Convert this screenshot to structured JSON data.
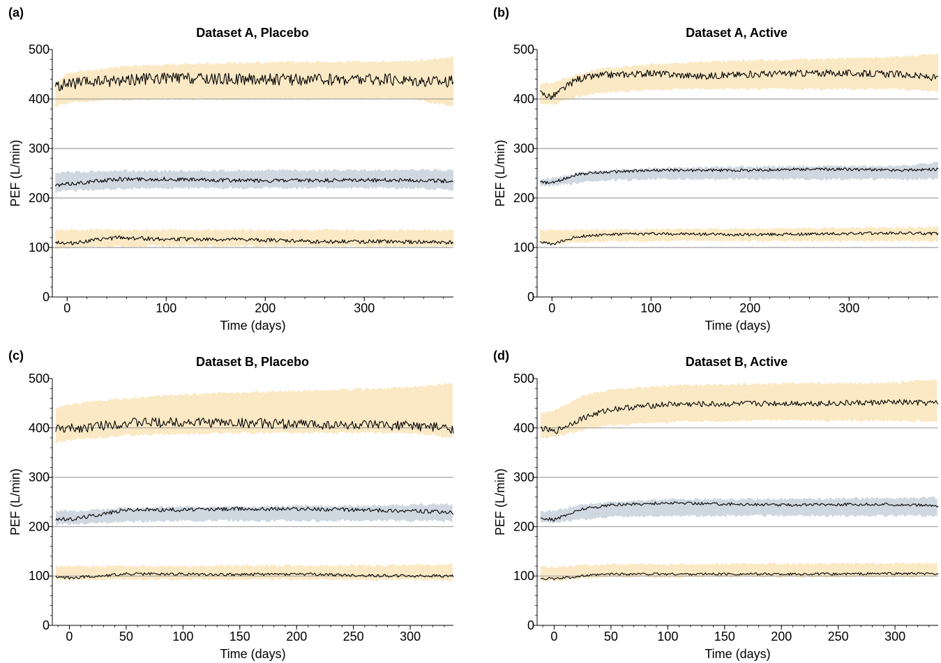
{
  "chart_data": [
    {
      "panel": "(a)",
      "type": "line",
      "title": "Dataset A, Placebo",
      "xlabel": "Time (days)",
      "ylabel": "PEF (L/min)",
      "xlim": [
        -15,
        390
      ],
      "ylim": [
        0,
        500
      ],
      "xticks": [
        0,
        100,
        200,
        300
      ],
      "yticks": [
        0,
        100,
        200,
        300,
        400,
        500
      ],
      "grid_y": [
        100,
        200,
        300,
        400
      ],
      "x_range": [
        -12,
        390
      ],
      "series": [
        {
          "band": "yellow",
          "x": [
            -12,
            0,
            50,
            100,
            150,
            200,
            250,
            300,
            350,
            390
          ],
          "lower": [
            385,
            392,
            398,
            400,
            400,
            400,
            400,
            400,
            400,
            385
          ],
          "upper": [
            430,
            452,
            465,
            470,
            472,
            474,
            475,
            475,
            477,
            485
          ],
          "median": [
            425,
            430,
            438,
            442,
            440,
            440,
            439,
            440,
            438,
            435
          ],
          "noise": 12,
          "seed": 11
        },
        {
          "band": "blue",
          "x": [
            -12,
            0,
            50,
            100,
            150,
            200,
            250,
            300,
            350,
            390
          ],
          "lower": [
            212,
            215,
            218,
            220,
            220,
            220,
            220,
            220,
            220,
            215
          ],
          "upper": [
            250,
            252,
            255,
            255,
            255,
            256,
            256,
            256,
            257,
            257
          ],
          "median": [
            225,
            228,
            238,
            238,
            236,
            235,
            235,
            236,
            236,
            234
          ],
          "noise": 4,
          "seed": 12
        },
        {
          "band": "yellow",
          "x": [
            -12,
            0,
            50,
            100,
            150,
            200,
            250,
            300,
            350,
            390
          ],
          "lower": [
            98,
            100,
            102,
            103,
            103,
            103,
            102,
            102,
            102,
            102
          ],
          "upper": [
            136,
            136,
            136,
            136,
            135,
            135,
            135,
            135,
            135,
            135
          ],
          "median": [
            112,
            108,
            120,
            117,
            116,
            115,
            112,
            112,
            111,
            110
          ],
          "noise": 4,
          "seed": 13
        }
      ]
    },
    {
      "panel": "(b)",
      "type": "line",
      "title": "Dataset A, Active",
      "xlabel": "Time (days)",
      "ylabel": "PEF (L/min)",
      "xlim": [
        -15,
        390
      ],
      "ylim": [
        0,
        500
      ],
      "xticks": [
        0,
        100,
        200,
        300
      ],
      "yticks": [
        0,
        100,
        200,
        300,
        400,
        500
      ],
      "grid_y": [
        100,
        200,
        300,
        400
      ],
      "x_range": [
        -12,
        390
      ],
      "series": [
        {
          "band": "yellow",
          "x": [
            -12,
            0,
            25,
            50,
            100,
            150,
            200,
            250,
            300,
            350,
            390
          ],
          "lower": [
            390,
            388,
            405,
            412,
            418,
            420,
            420,
            420,
            420,
            420,
            415
          ],
          "upper": [
            432,
            432,
            450,
            462,
            470,
            475,
            478,
            480,
            482,
            485,
            492
          ],
          "median": [
            412,
            404,
            440,
            448,
            452,
            446,
            450,
            452,
            452,
            450,
            442
          ],
          "noise": 7,
          "seed": 21
        },
        {
          "band": "blue",
          "x": [
            -12,
            0,
            25,
            50,
            100,
            150,
            200,
            250,
            300,
            350,
            390
          ],
          "lower": [
            226,
            225,
            230,
            235,
            238,
            238,
            238,
            238,
            238,
            238,
            238
          ],
          "upper": [
            238,
            240,
            250,
            255,
            260,
            262,
            263,
            264,
            264,
            265,
            272
          ],
          "median": [
            232,
            230,
            248,
            252,
            256,
            256,
            256,
            258,
            258,
            256,
            258
          ],
          "noise": 3,
          "seed": 22
        },
        {
          "band": "yellow",
          "x": [
            -12,
            0,
            25,
            50,
            100,
            150,
            200,
            250,
            300,
            350,
            390
          ],
          "lower": [
            108,
            106,
            110,
            112,
            113,
            113,
            113,
            113,
            113,
            113,
            112
          ],
          "upper": [
            135,
            135,
            135,
            136,
            137,
            138,
            138,
            139,
            140,
            140,
            141
          ],
          "median": [
            112,
            106,
            122,
            126,
            128,
            127,
            126,
            127,
            128,
            129,
            128
          ],
          "noise": 3,
          "seed": 23
        }
      ]
    },
    {
      "panel": "(c)",
      "type": "line",
      "title": "Dataset B, Placebo",
      "xlabel": "Time (days)",
      "ylabel": "PEF (L/min)",
      "xlim": [
        -15,
        338
      ],
      "ylim": [
        0,
        500
      ],
      "xticks": [
        0,
        50,
        100,
        150,
        200,
        250,
        300
      ],
      "yticks": [
        0,
        100,
        200,
        300,
        400,
        500
      ],
      "grid_y": [
        100,
        200,
        300,
        400
      ],
      "x_range": [
        -12,
        338
      ],
      "series": [
        {
          "band": "yellow",
          "x": [
            -12,
            0,
            50,
            100,
            150,
            200,
            250,
            300,
            338
          ],
          "lower": [
            370,
            375,
            385,
            388,
            390,
            390,
            390,
            390,
            380
          ],
          "upper": [
            440,
            448,
            460,
            468,
            472,
            475,
            478,
            482,
            490
          ],
          "median": [
            398,
            398,
            410,
            412,
            410,
            408,
            405,
            405,
            398
          ],
          "noise": 10,
          "seed": 31
        },
        {
          "band": "blue",
          "x": [
            -12,
            0,
            50,
            100,
            150,
            200,
            250,
            300,
            338
          ],
          "lower": [
            205,
            205,
            210,
            212,
            212,
            212,
            212,
            212,
            212
          ],
          "upper": [
            232,
            232,
            238,
            240,
            240,
            242,
            242,
            244,
            246
          ],
          "median": [
            216,
            214,
            234,
            234,
            236,
            236,
            234,
            232,
            228
          ],
          "noise": 4,
          "seed": 32
        },
        {
          "band": "yellow",
          "x": [
            -12,
            0,
            50,
            100,
            150,
            200,
            250,
            300,
            338
          ],
          "lower": [
            92,
            92,
            93,
            93,
            93,
            93,
            92,
            92,
            92
          ],
          "upper": [
            120,
            120,
            120,
            120,
            121,
            121,
            121,
            122,
            124
          ],
          "median": [
            98,
            96,
            104,
            104,
            103,
            104,
            101,
            100,
            100
          ],
          "noise": 3,
          "seed": 33
        }
      ]
    },
    {
      "panel": "(d)",
      "type": "line",
      "title": "Dataset B, Active",
      "xlabel": "Time (days)",
      "ylabel": "PEF (L/min)",
      "xlim": [
        -15,
        338
      ],
      "ylim": [
        0,
        500
      ],
      "xticks": [
        0,
        50,
        100,
        150,
        200,
        250,
        300
      ],
      "yticks": [
        0,
        100,
        200,
        300,
        400,
        500
      ],
      "grid_y": [
        100,
        200,
        300,
        400
      ],
      "x_range": [
        -12,
        338
      ],
      "series": [
        {
          "band": "yellow",
          "x": [
            -12,
            0,
            25,
            50,
            100,
            150,
            200,
            250,
            300,
            338
          ],
          "lower": [
            380,
            382,
            395,
            405,
            412,
            414,
            415,
            415,
            415,
            412
          ],
          "upper": [
            430,
            435,
            465,
            478,
            485,
            488,
            490,
            490,
            492,
            498
          ],
          "median": [
            400,
            392,
            420,
            438,
            448,
            448,
            450,
            450,
            452,
            450
          ],
          "noise": 6,
          "seed": 41
        },
        {
          "band": "blue",
          "x": [
            -12,
            0,
            25,
            50,
            100,
            150,
            200,
            250,
            300,
            338
          ],
          "lower": [
            208,
            208,
            215,
            220,
            222,
            222,
            222,
            222,
            222,
            222
          ],
          "upper": [
            230,
            232,
            245,
            250,
            255,
            256,
            256,
            257,
            258,
            258
          ],
          "median": [
            218,
            214,
            236,
            244,
            248,
            246,
            244,
            245,
            245,
            242
          ],
          "noise": 3,
          "seed": 42
        },
        {
          "band": "yellow",
          "x": [
            -12,
            0,
            25,
            50,
            100,
            150,
            200,
            250,
            300,
            338
          ],
          "lower": [
            90,
            90,
            95,
            98,
            98,
            98,
            98,
            98,
            98,
            98
          ],
          "upper": [
            118,
            118,
            122,
            124,
            124,
            125,
            125,
            125,
            125,
            126
          ],
          "median": [
            96,
            94,
            100,
            104,
            104,
            104,
            104,
            104,
            105,
            104
          ],
          "noise": 2.5,
          "seed": 43
        }
      ]
    }
  ],
  "colors": {
    "yellow_band": "#fbe9c5",
    "blue_band": "#cfd8e0",
    "line": "#000000",
    "grid": "#8a8a8a"
  }
}
